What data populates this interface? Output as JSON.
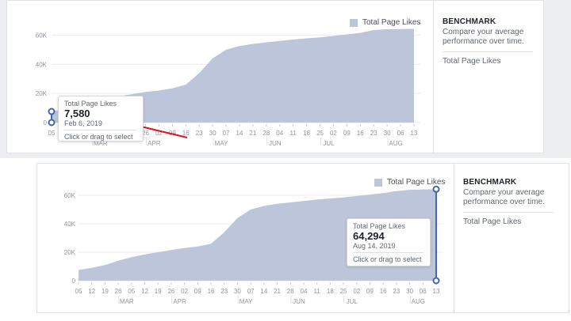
{
  "colors": {
    "area_fill": "#bdc5da",
    "selection_handle": "#4267b2",
    "annotation_arrow": "#e0141e",
    "gridline": "#e9ebee"
  },
  "panels": [
    {
      "legend_label": "Total Page Likes",
      "benchmark": {
        "title": "BENCHMARK",
        "description": "Compare your average performance over time.",
        "metric": "Total Page Likes"
      },
      "tooltip": {
        "label": "Total Page Likes",
        "value": "7,580",
        "date": "Feb 6, 2019",
        "hint": "Click or drag to select"
      },
      "annotation": "red-arrow-pointing-to-value",
      "y_ticks": [
        "0",
        "20K",
        "40K",
        "60K"
      ],
      "x_ticks": [
        "05",
        "12",
        "19",
        "26",
        "05",
        "12",
        "19",
        "26",
        "02",
        "09",
        "16",
        "23",
        "30",
        "07",
        "14",
        "21",
        "28",
        "04",
        "11",
        "18",
        "25",
        "02",
        "09",
        "16",
        "23",
        "30",
        "06",
        "13"
      ],
      "months": [
        "MAR",
        "APR",
        "MAY",
        "JUN",
        "JUL",
        "AUG"
      ],
      "chart_data": {
        "type": "area",
        "series": [
          {
            "name": "Total Page Likes",
            "values": [
              7580,
              9500,
              11000,
              14000,
              16000,
              18000,
              19500,
              21000,
              22000,
              23500,
              26000,
              34000,
              44000,
              50000,
              52500,
              54000,
              55000,
              56000,
              57000,
              57800,
              58500,
              59500,
              60500,
              61500,
              63500,
              64000,
              64200,
              64294
            ]
          }
        ],
        "ylim": [
          0,
          70000
        ]
      }
    },
    {
      "legend_label": "Total Page Likes",
      "benchmark": {
        "title": "BENCHMARK",
        "description": "Compare your average performance over time.",
        "metric": "Total Page Likes"
      },
      "tooltip": {
        "label": "Total Page Likes",
        "value": "64,294",
        "date": "Aug 14, 2019",
        "hint": "Click or drag to select"
      },
      "y_ticks": [
        "0",
        "20K",
        "40K",
        "60K"
      ],
      "x_ticks": [
        "05",
        "12",
        "19",
        "26",
        "05",
        "12",
        "19",
        "26",
        "02",
        "09",
        "16",
        "23",
        "30",
        "07",
        "14",
        "21",
        "28",
        "04",
        "11",
        "18",
        "25",
        "02",
        "09",
        "16",
        "23",
        "30",
        "06",
        "13"
      ],
      "months": [
        "MAR",
        "APR",
        "MAY",
        "JUN",
        "JUL",
        "AUG"
      ],
      "chart_data": {
        "type": "area",
        "series": [
          {
            "name": "Total Page Likes",
            "values": [
              7580,
              9000,
              11000,
              14000,
              16500,
              18500,
              20000,
              21500,
              23000,
              24000,
              26000,
              34000,
              44000,
              50000,
              52500,
              54000,
              55000,
              56000,
              57000,
              57800,
              58500,
              59500,
              60500,
              61500,
              63000,
              63800,
              64100,
              64294
            ]
          }
        ],
        "ylim": [
          0,
          70000
        ]
      }
    }
  ]
}
